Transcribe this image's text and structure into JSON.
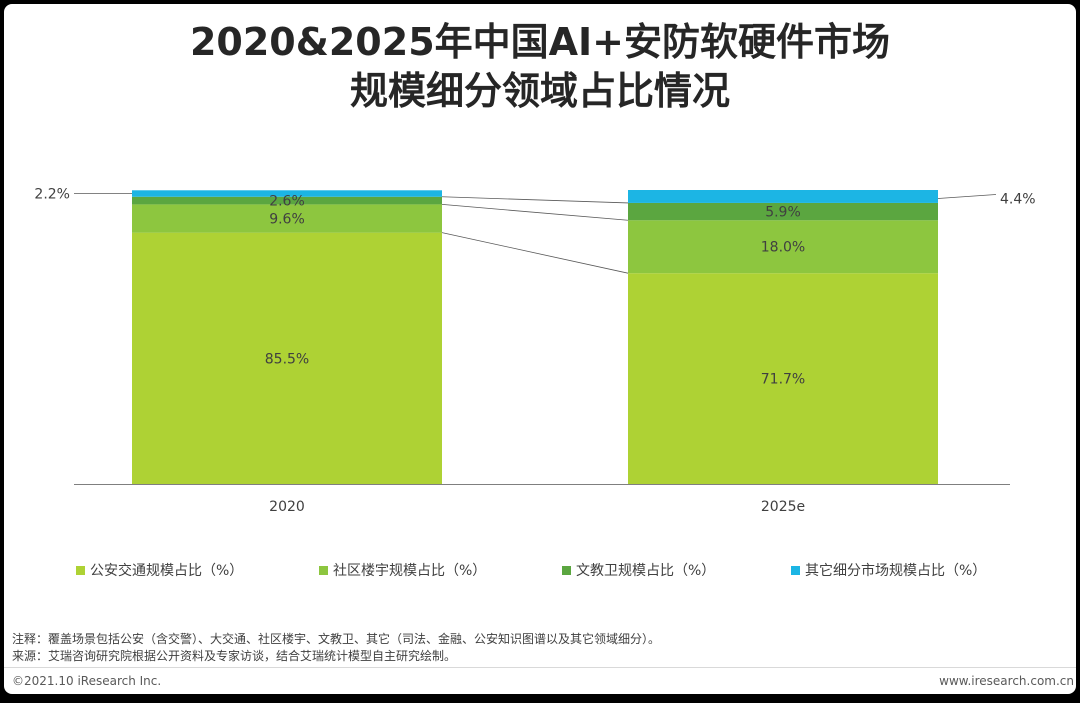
{
  "title": {
    "line1": "2020&2025年中国AI+安防软硬件市场",
    "line2": "规模细分领域占比情况"
  },
  "colors": {
    "public_security": "#AED234",
    "community": "#8DC63F",
    "culture_edu": "#5BA640",
    "other": "#1CB5E4",
    "axis": "#7F7F7F",
    "connector": "#595959"
  },
  "chart_data": {
    "type": "bar",
    "stacked": true,
    "categories": [
      "2020",
      "2025e"
    ],
    "ylim": [
      0,
      100
    ],
    "grid": false,
    "legend_position": "bottom",
    "series": [
      {
        "name": "公安交通规模占比（%）",
        "values": [
          85.5,
          71.7
        ],
        "labels": [
          "85.5%",
          "71.7%"
        ]
      },
      {
        "name": "社区楼宇规模占比（%）",
        "values": [
          9.6,
          18.0
        ],
        "labels": [
          "9.6%",
          "18.0%"
        ]
      },
      {
        "name": "文教卫规模占比（%）",
        "values": [
          2.6,
          5.9
        ],
        "labels": [
          "2.6%",
          "5.9%"
        ]
      },
      {
        "name": "其它细分市场规模占比（%）",
        "values": [
          2.2,
          4.4
        ],
        "labels": [
          "2.2%",
          "4.4%"
        ]
      }
    ]
  },
  "legend": [
    {
      "label": "公安交通规模占比（%）"
    },
    {
      "label": "社区楼宇规模占比（%）"
    },
    {
      "label": "文教卫规模占比（%）"
    },
    {
      "label": "其它细分市场规模占比（%）"
    }
  ],
  "notes": {
    "note": "注释：覆盖场景包括公安（含交警）、大交通、社区楼宇、文教卫、其它（司法、金融、公安知识图谱以及其它领域细分）。",
    "source": "来源：艾瑞咨询研究院根据公开资料及专家访谈，结合艾瑞统计模型自主研究绘制。"
  },
  "footer": {
    "copyright": "©2021.10 iResearch Inc.",
    "website": "www.iresearch.com.cn"
  }
}
